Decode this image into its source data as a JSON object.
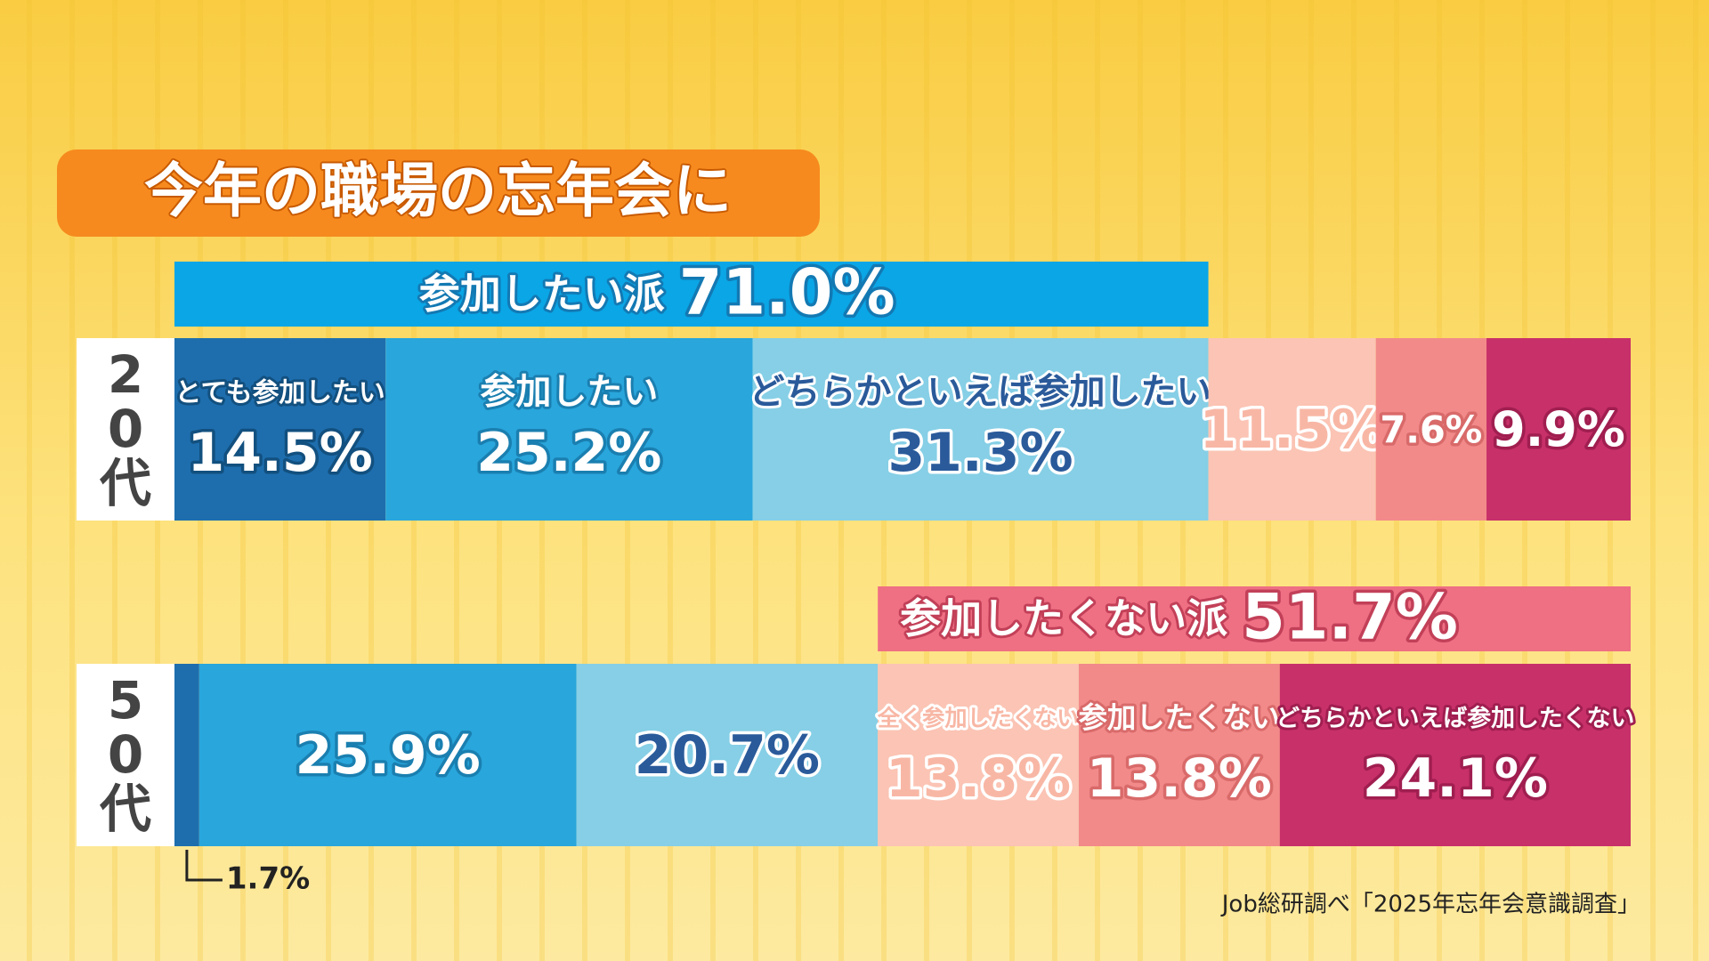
{
  "chart_data": {
    "type": "stacked_bar",
    "title": "今年の職場の忘年会に",
    "categories": [
      "20代",
      "50代"
    ],
    "series": [
      {
        "name": "とても参加したい",
        "color": "#1e6eae",
        "values": [
          14.5,
          1.7
        ],
        "value_labels": [
          "14.5%",
          "1.7%"
        ]
      },
      {
        "name": "参加したい",
        "color": "#29a6dc",
        "values": [
          25.2,
          25.9
        ],
        "value_labels": [
          "25.2%",
          "25.9%"
        ]
      },
      {
        "name": "どちらかといえば参加したい",
        "color": "#86cfe6",
        "values": [
          31.3,
          20.7
        ],
        "value_labels": [
          "31.3%",
          "20.7%"
        ]
      },
      {
        "name": "全く参加したくない",
        "color": "#fbc4b4",
        "values": [
          11.5,
          13.8
        ],
        "value_labels": [
          "11.5%",
          "13.8%"
        ]
      },
      {
        "name": "参加したくない",
        "color": "#f28a8a",
        "values": [
          7.6,
          13.8
        ],
        "value_labels": [
          "7.6%",
          "13.8%"
        ]
      },
      {
        "name": "どちらかといえば参加したくない",
        "color": "#c8306a",
        "values": [
          9.9,
          24.1
        ],
        "value_labels": [
          "9.9%",
          "24.1%"
        ]
      }
    ],
    "annotations": [
      {
        "text": "参加したい派",
        "value": 71.0,
        "value_label": "71.0%",
        "color": "#0aa6e6"
      },
      {
        "text": "参加したくない派",
        "value": 51.7,
        "value_label": "51.7%",
        "color": "#ef6f83"
      }
    ],
    "source": "Job総研調べ「2025年忘年会意識調査」"
  }
}
